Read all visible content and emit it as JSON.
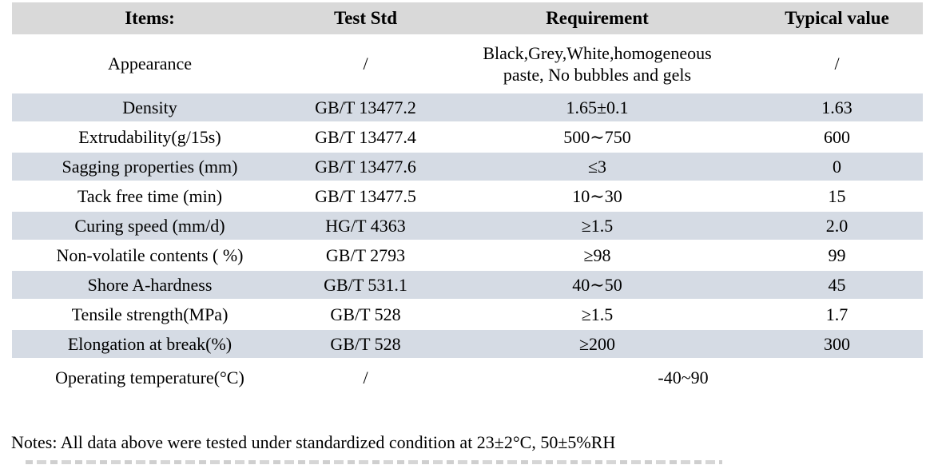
{
  "table": {
    "columns": [
      {
        "key": "item",
        "label": "Items:"
      },
      {
        "key": "test_std",
        "label": "Test Std"
      },
      {
        "key": "requirement",
        "label": "Requirement"
      },
      {
        "key": "typical",
        "label": "Typical value"
      }
    ],
    "rows": [
      {
        "item": "Appearance",
        "test_std": "/",
        "requirement": "Black,Grey,White,homogeneous\npaste, No bubbles and gels",
        "typical": "/",
        "shaded": false,
        "tall": true
      },
      {
        "item": "Density",
        "test_std": "GB/T 13477.2",
        "requirement": "1.65±0.1",
        "typical": "1.63",
        "shaded": true
      },
      {
        "item": "Extrudability(g/15s)",
        "test_std": "GB/T 13477.4",
        "requirement": "500∼750",
        "typical": "600",
        "shaded": false
      },
      {
        "item": "Sagging properties (mm)",
        "test_std": "GB/T 13477.6",
        "requirement": "≤3",
        "typical": "0",
        "shaded": true
      },
      {
        "item": "Tack free time (min)",
        "test_std": "GB/T 13477.5",
        "requirement": "10∼30",
        "typical": "15",
        "shaded": false
      },
      {
        "item": "Curing speed (mm/d)",
        "test_std": "HG/T 4363",
        "requirement": "≥1.5",
        "typical": "2.0",
        "shaded": true
      },
      {
        "item": "Non-volatile contents ( %)",
        "test_std": "GB/T 2793",
        "requirement": "≥98",
        "typical": "99",
        "shaded": false
      },
      {
        "item": "Shore A-hardness",
        "test_std": "GB/T 531.1",
        "requirement": "40∼50",
        "typical": "45",
        "shaded": true
      },
      {
        "item": "Tensile strength(MPa)",
        "test_std": "GB/T 528",
        "requirement": "≥1.5",
        "typical": "1.7",
        "shaded": false
      },
      {
        "item": "Elongation at break(%)",
        "test_std": "GB/T 528",
        "requirement": "≥200",
        "typical": "300",
        "shaded": true
      },
      {
        "item": "Operating temperature(°C)",
        "test_std": "/",
        "requirement": "-40~90",
        "typical": null,
        "shaded": false,
        "merge_requirement_typical": true,
        "last": true
      }
    ],
    "colors": {
      "header_bg": "#d9d9d9",
      "shaded_row_bg": "#d5dbe4"
    }
  },
  "notes": "Notes: All data above were tested under standardized condition at 23±2°C,  50±5%RH"
}
